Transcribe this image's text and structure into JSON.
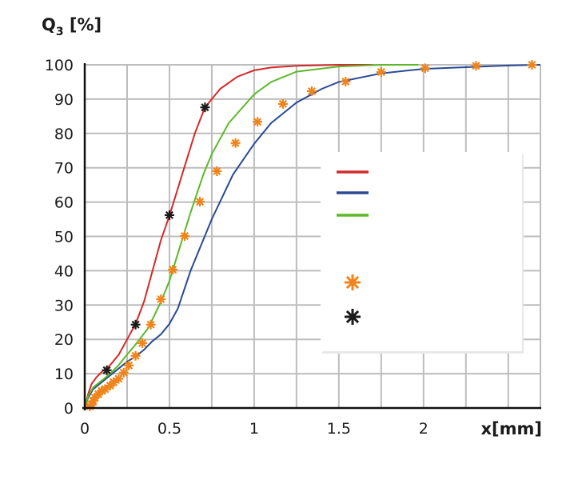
{
  "chart_data": {
    "type": "line",
    "title": "",
    "xlabel": "x[mm]",
    "ylabel": "Q3 [%]",
    "ylabel_main": "Q",
    "ylabel_sub": "3",
    "ylabel_unit": " [%]",
    "xlim": [
      0,
      2.69
    ],
    "ylim": [
      0,
      100
    ],
    "grid": true,
    "grid_x_step": 0.25,
    "grid_y_step": 10,
    "x_ticks": [
      "0",
      "0.5",
      "1",
      "1.5",
      "2"
    ],
    "x_tick_values": [
      0,
      0.5,
      1,
      1.5,
      2
    ],
    "y_ticks": [
      "0",
      "10",
      "20",
      "30",
      "40",
      "50",
      "60",
      "70",
      "80",
      "90",
      "100"
    ],
    "y_tick_values": [
      0,
      10,
      20,
      30,
      40,
      50,
      60,
      70,
      80,
      90,
      100
    ],
    "legend_position": "center-right",
    "series": [
      {
        "kind": "line",
        "color": "#d42a2a",
        "x": [
          0,
          0.02,
          0.04,
          0.07,
          0.1,
          0.15,
          0.2,
          0.25,
          0.3,
          0.35,
          0.4,
          0.45,
          0.5,
          0.55,
          0.6,
          0.65,
          0.71,
          0.75,
          0.8,
          0.9,
          1.0,
          1.1,
          1.25,
          1.5,
          1.7
        ],
        "y": [
          0,
          4,
          7,
          9,
          10.5,
          12.5,
          15.5,
          20,
          24.5,
          31,
          40,
          49,
          56,
          64,
          72,
          80,
          87.6,
          90,
          93,
          96.5,
          98.4,
          99.2,
          99.7,
          100,
          100
        ]
      },
      {
        "kind": "line",
        "color": "#2a4a94",
        "x": [
          0,
          0.02,
          0.05,
          0.1,
          0.15,
          0.2,
          0.25,
          0.3,
          0.35,
          0.4,
          0.45,
          0.5,
          0.55,
          0.625,
          0.75,
          0.875,
          1.0,
          1.1,
          1.25,
          1.4,
          1.5,
          1.75,
          2.0,
          2.25,
          2.5,
          2.69
        ],
        "y": [
          0,
          3,
          5.5,
          7.5,
          9.5,
          11.5,
          13.5,
          15,
          17,
          19.5,
          21.5,
          24.5,
          29,
          40,
          55,
          68,
          77,
          83,
          89,
          93,
          95,
          97.5,
          98.8,
          99.3,
          99.8,
          100
        ]
      },
      {
        "kind": "line",
        "color": "#5cb82a",
        "x": [
          0,
          0.02,
          0.05,
          0.1,
          0.15,
          0.2,
          0.25,
          0.3,
          0.375,
          0.45,
          0.5,
          0.55,
          0.625,
          0.7,
          0.75,
          0.85,
          1.0,
          1.1,
          1.25,
          1.5,
          1.75,
          1.97
        ],
        "y": [
          0,
          3.5,
          6,
          8,
          10,
          12.5,
          15.6,
          18.5,
          23.3,
          31,
          37,
          45,
          57,
          68,
          74,
          83,
          91.4,
          95,
          98,
          99.5,
          100,
          100
        ]
      },
      {
        "kind": "marker",
        "marker": "asterisk",
        "color": "#f0841a",
        "x": [
          0.03,
          0.04,
          0.05,
          0.06,
          0.08,
          0.1,
          0.12,
          0.15,
          0.17,
          0.2,
          0.23,
          0.26,
          0.3,
          0.34,
          0.39,
          0.45,
          0.52,
          0.59,
          0.68,
          0.78,
          0.89,
          1.02,
          1.17,
          1.34,
          1.54,
          1.75,
          2.01,
          2.31,
          2.64
        ],
        "y": [
          0.5,
          1,
          2,
          3,
          4,
          5,
          5.5,
          6.5,
          7.5,
          8.5,
          10.3,
          12.4,
          15.2,
          18.9,
          24.3,
          31.7,
          40.3,
          50.1,
          60.1,
          69,
          77.2,
          83.4,
          88.6,
          92.3,
          95.1,
          97.9,
          99,
          99.7,
          100
        ]
      },
      {
        "kind": "marker",
        "marker": "asterisk",
        "color": "#1a1a1a",
        "x": [
          0.13,
          0.3,
          0.5,
          0.71
        ],
        "y": [
          11,
          24.3,
          56.2,
          87.6
        ]
      }
    ]
  }
}
